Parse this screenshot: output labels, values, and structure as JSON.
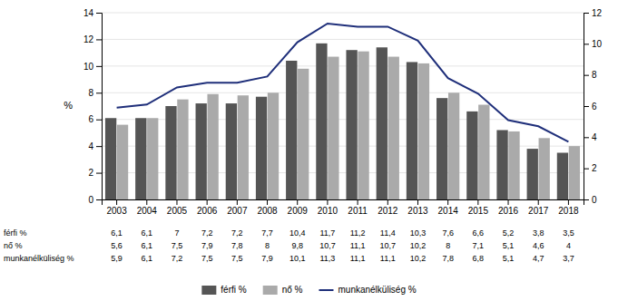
{
  "chart_data": {
    "type": "bar",
    "y_label": "%",
    "categories": [
      2003,
      2004,
      2005,
      2006,
      2007,
      2008,
      2009,
      2010,
      2011,
      2012,
      2013,
      2014,
      2015,
      2016,
      2017,
      2018
    ],
    "series": [
      {
        "name": "férfi %",
        "type": "bar",
        "color": "#555555",
        "values": [
          6.1,
          6.1,
          7.0,
          7.2,
          7.2,
          7.7,
          10.4,
          11.7,
          11.2,
          11.4,
          10.3,
          7.6,
          6.6,
          5.2,
          3.8,
          3.5
        ],
        "value_labels": [
          "6,1",
          "6,1",
          "7",
          "7,2",
          "7,2",
          "7,7",
          "10,4",
          "11,7",
          "11,2",
          "11,4",
          "10,3",
          "7,6",
          "6,6",
          "5,2",
          "3,8",
          "3,5"
        ]
      },
      {
        "name": "nő %",
        "type": "bar",
        "color": "#aaaaaa",
        "values": [
          5.6,
          6.1,
          7.5,
          7.9,
          7.8,
          8.0,
          9.8,
          10.7,
          11.1,
          10.7,
          10.2,
          8.0,
          7.1,
          5.1,
          4.6,
          4.0
        ],
        "value_labels": [
          "5,6",
          "6,1",
          "7,5",
          "7,9",
          "7,8",
          "8",
          "9,8",
          "10,7",
          "11,1",
          "10,7",
          "10,2",
          "8",
          "7,1",
          "5,1",
          "4,6",
          "4"
        ]
      },
      {
        "name": "munkanélküliség %",
        "type": "line",
        "axis": "y2",
        "color": "#1f2f7a",
        "values": [
          5.9,
          6.1,
          7.2,
          7.5,
          7.5,
          7.9,
          10.1,
          11.3,
          11.1,
          11.1,
          10.2,
          7.8,
          6.8,
          5.1,
          4.7,
          3.7
        ],
        "value_labels": [
          "5,9",
          "6,1",
          "7,2",
          "7,5",
          "7,5",
          "7,9",
          "10,1",
          "11,3",
          "11,1",
          "11,1",
          "10,2",
          "7,8",
          "6,8",
          "5,1",
          "4,7",
          "3,7"
        ]
      }
    ],
    "ylim": [
      0,
      14
    ],
    "yticks": [
      0,
      2,
      4,
      6,
      8,
      10,
      12,
      14
    ],
    "y2lim": [
      0,
      12
    ],
    "y2ticks": [
      0,
      2,
      4,
      6,
      8,
      10,
      12
    ],
    "grid": true,
    "legend": "bottom"
  }
}
